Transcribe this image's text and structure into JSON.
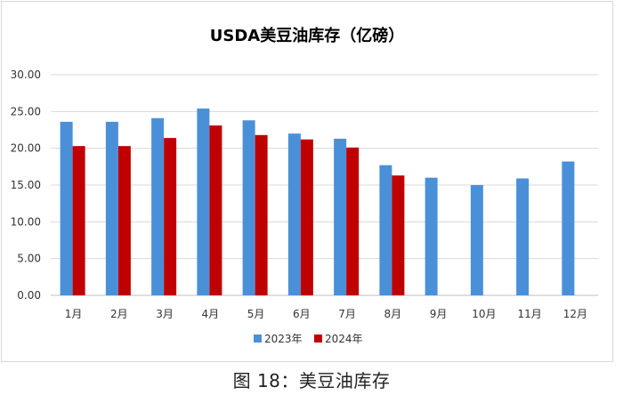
{
  "caption": "图 18：美豆油库存",
  "chart_data": {
    "type": "bar",
    "title": "USDA美豆油库存（亿磅）",
    "xlabel": "",
    "ylabel": "",
    "categories": [
      "1月",
      "2月",
      "3月",
      "4月",
      "5月",
      "6月",
      "7月",
      "8月",
      "9月",
      "10月",
      "11月",
      "12月"
    ],
    "ylim": [
      0,
      30
    ],
    "yticks": [
      "0.00",
      "5.00",
      "10.00",
      "15.00",
      "20.00",
      "25.00",
      "30.00"
    ],
    "grid": true,
    "legend": "bottom",
    "series": [
      {
        "name": "2023年",
        "color": "#4a90d9",
        "values": [
          23.6,
          23.6,
          24.1,
          25.4,
          23.8,
          22.0,
          21.3,
          17.7,
          16.0,
          15.0,
          15.9,
          18.2
        ]
      },
      {
        "name": "2024年",
        "color": "#c00000",
        "values": [
          20.3,
          20.3,
          21.4,
          23.1,
          21.8,
          21.2,
          20.1,
          16.3,
          null,
          null,
          null,
          null
        ]
      }
    ]
  }
}
